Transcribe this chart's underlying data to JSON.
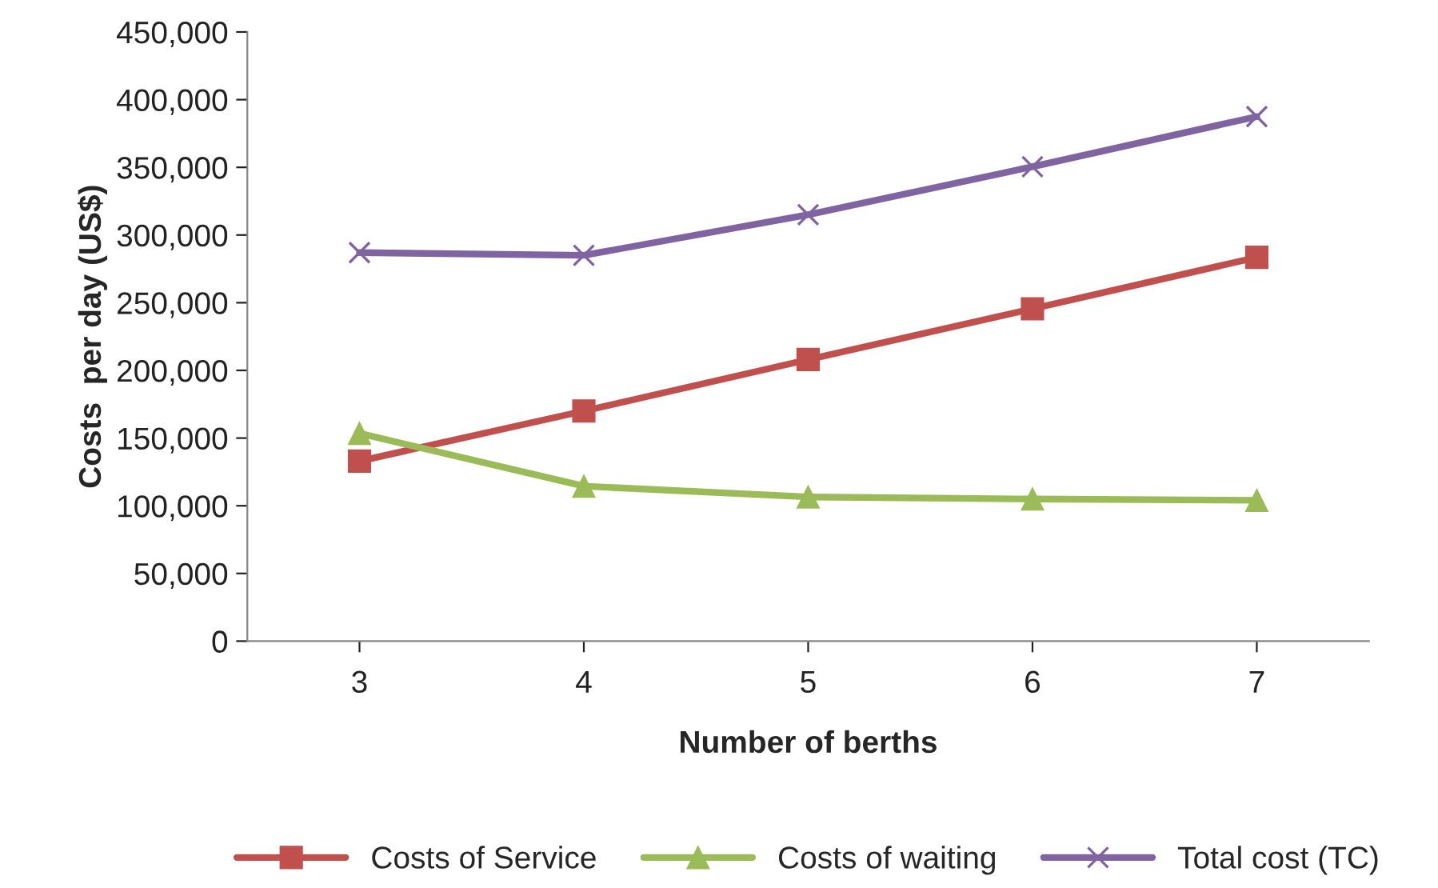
{
  "chart_data": {
    "type": "line",
    "xlabel": "Number of berths",
    "ylabel": "Costs  per day (US$)",
    "categories": [
      "3",
      "4",
      "5",
      "6",
      "7"
    ],
    "series": [
      {
        "name": "Costs of Service",
        "color": "#c0504d",
        "marker": "square",
        "values": [
          133000,
          170000,
          208000,
          245500,
          283500
        ]
      },
      {
        "name": "Costs of waiting",
        "color": "#9bbb59",
        "marker": "triangle",
        "values": [
          153500,
          114500,
          106500,
          105000,
          104000
        ]
      },
      {
        "name": "Total cost (TC)",
        "color": "#8064a2",
        "marker": "cross",
        "values": [
          287000,
          285000,
          315000,
          350500,
          387500
        ]
      }
    ],
    "ylim": [
      0,
      450000
    ],
    "yticks": [
      0,
      {
        "value": 50000,
        "label": "50,000"
      },
      {
        "value": 100000,
        "label": "100,000"
      },
      {
        "value": 150000,
        "label": "150,000"
      },
      {
        "value": 200000,
        "label": "200,000"
      },
      {
        "value": 250000,
        "label": "250,000"
      },
      {
        "value": 300000,
        "label": "300,000"
      },
      {
        "value": 350000,
        "label": "350,000"
      },
      {
        "value": 400000,
        "label": "400,000"
      },
      {
        "value": 450000,
        "label": "450,000"
      }
    ],
    "grid": false,
    "legend": "bottom",
    "line_style": "solid"
  }
}
